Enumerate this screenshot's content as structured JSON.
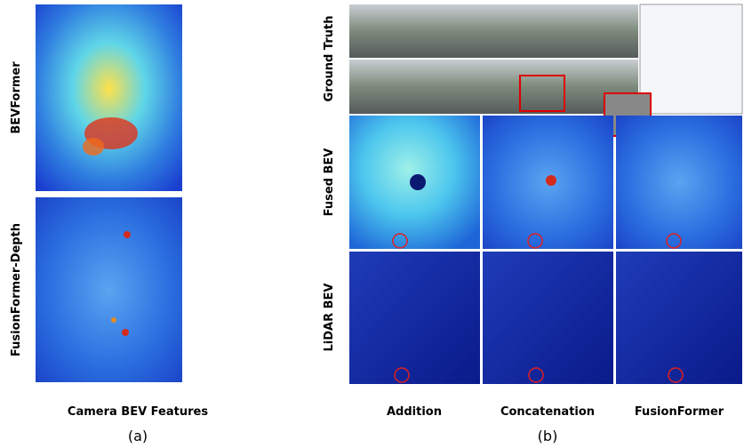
{
  "panel_a": {
    "row_labels": [
      "BEVFormer",
      "FusionFormer-Depth"
    ],
    "caption": "Camera BEV Features",
    "panel_label": "(a)"
  },
  "panel_b": {
    "row_labels": [
      "Ground Truth",
      "Fused BEV",
      "LiDAR BEV"
    ],
    "column_labels": [
      "Addition",
      "Concatenation",
      "FusionFormer"
    ],
    "panel_label": "(b)"
  }
}
